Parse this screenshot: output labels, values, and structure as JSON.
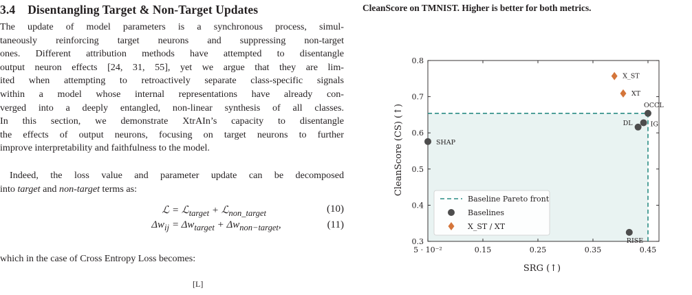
{
  "section": {
    "number": "3.4",
    "title": "Disentangling Target & Non-Target Updates"
  },
  "paragraph1": [
    "The update of model parameters is a synchronous process, simul-",
    "taneously reinforcing target neurons and suppressing non-target",
    "ones. Different attribution methods have attempted to disentangle",
    "output neuron effects [24, 31, 55], yet we argue that they are lim-",
    "ited when attempting to retroactively separate class-specific signals",
    "within a model whose internal representations have already con-",
    "verged into a deeply entangled, non-linear synthesis of all classes.",
    "In this section, we demonstrate XtrAIn’s capacity to disentangle",
    "the effects of output neurons, focusing on target neurons to further",
    "improve interpretability and faithfulness to the model."
  ],
  "paragraph2": {
    "line1": "Indeed, the loss value and parameter update can be decomposed",
    "line2_pre": "into ",
    "line2_t1": "target",
    "line2_mid": " and ",
    "line2_t2": "non-target",
    "line2_post": " terms as:"
  },
  "equations": [
    {
      "lhs": "ℒ",
      "rhs": "= ℒtarget + ℒnon_target",
      "rhs_parts": [
        "= ℒ",
        "target",
        " + ℒ",
        "non_target"
      ],
      "number": "(10)"
    },
    {
      "lhs": "Δw",
      "lhs_sub": "ij",
      "rhs_parts": [
        "= Δw",
        "target",
        " + Δw",
        "non−target",
        ","
      ],
      "number": "(11)"
    }
  ],
  "after_eq": "which in the case of Cross Entropy Loss becomes:",
  "stub": "[L]",
  "caption": "CleanScore on TMNIST. Higher is better for both metrics.",
  "chart_data": {
    "type": "scatter",
    "title": "",
    "xlabel": "SRG (↑)",
    "ylabel": "CleanScore (CS) (↑)",
    "xlim": [
      0.05,
      0.47
    ],
    "ylim": [
      0.3,
      0.8
    ],
    "x_ticks": [
      0.05,
      0.15,
      0.25,
      0.35,
      0.45
    ],
    "x_tick_labels": [
      "5 · 10⁻²",
      "0.15",
      "0.25",
      "0.35",
      "0.45"
    ],
    "y_ticks": [
      0.3,
      0.4,
      0.5,
      0.6,
      0.7,
      0.8
    ],
    "y_tick_labels": [
      "0.3",
      "0.4",
      "0.5",
      "0.6",
      "0.7",
      "0.8"
    ],
    "grid": false,
    "legend_position": "bottom-left",
    "pareto_front": {
      "name": "Baseline Pareto front",
      "x": 0.45,
      "y": 0.654,
      "color": "#2a8c84"
    },
    "series": [
      {
        "name": "Baselines",
        "marker": "circle",
        "color": "#4d4d4d",
        "points": [
          {
            "label": "SHAP",
            "x": 0.05,
            "y": 0.576
          },
          {
            "label": "DL",
            "x": 0.432,
            "y": 0.616
          },
          {
            "label": "IG",
            "x": 0.442,
            "y": 0.628
          },
          {
            "label": "OCCL",
            "x": 0.45,
            "y": 0.654
          },
          {
            "label": "RISE",
            "x": 0.416,
            "y": 0.325
          }
        ]
      },
      {
        "name": "X_ST / XT",
        "marker": "diamond",
        "color": "#d4753a",
        "points": [
          {
            "label": "X_ST",
            "x": 0.389,
            "y": 0.757
          },
          {
            "label": "XT",
            "x": 0.405,
            "y": 0.709
          }
        ]
      }
    ]
  }
}
